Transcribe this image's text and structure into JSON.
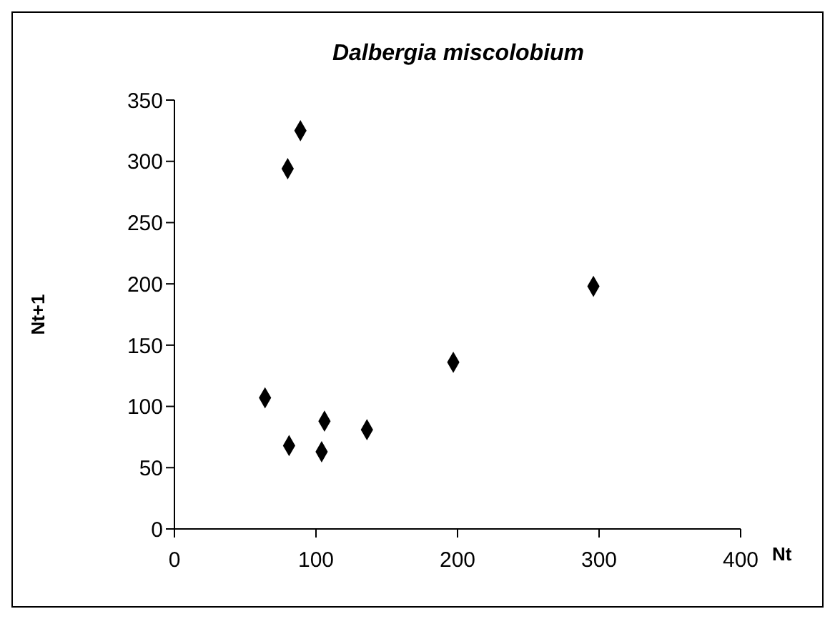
{
  "chart_data": {
    "type": "scatter",
    "title": "Dalbergia miscolobium",
    "xlabel": "Nt",
    "ylabel": "Nt+1",
    "x": [
      64,
      80,
      89,
      81,
      104,
      106,
      136,
      197,
      296
    ],
    "values": [
      107,
      294,
      325,
      68,
      63,
      88,
      81,
      136,
      198
    ],
    "color": "#000000",
    "marker": "diamond",
    "xlim": [
      0,
      400
    ],
    "xticks": [
      0,
      100,
      200,
      300,
      400
    ],
    "ylim": [
      0,
      350
    ],
    "yticks": [
      0,
      50,
      100,
      150,
      200,
      250,
      300,
      350
    ],
    "grid": false,
    "legend": false
  }
}
